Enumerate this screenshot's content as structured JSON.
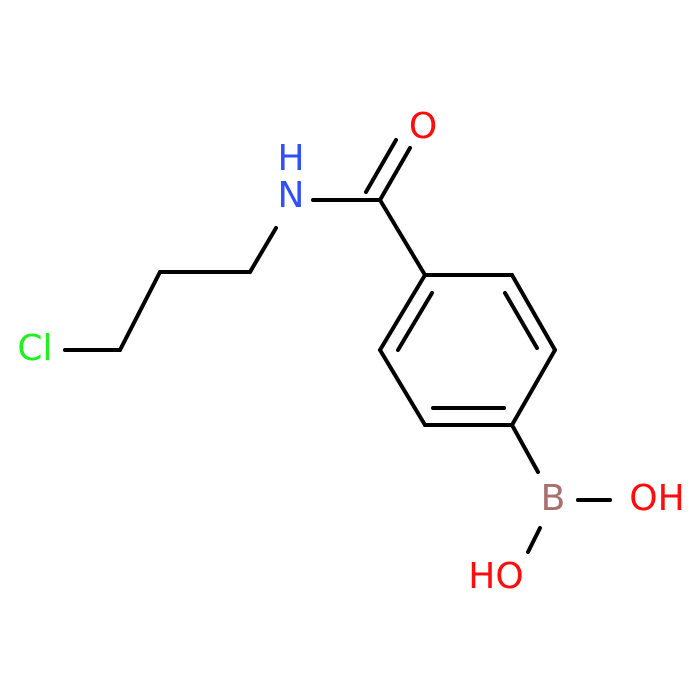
{
  "atoms": {
    "oxygen": "O",
    "nitrogen": "N",
    "amide_h": "H",
    "chlorine": "Cl",
    "boron": "B",
    "hydroxyl_right": "OH",
    "hydroxyl_left": "HO"
  }
}
